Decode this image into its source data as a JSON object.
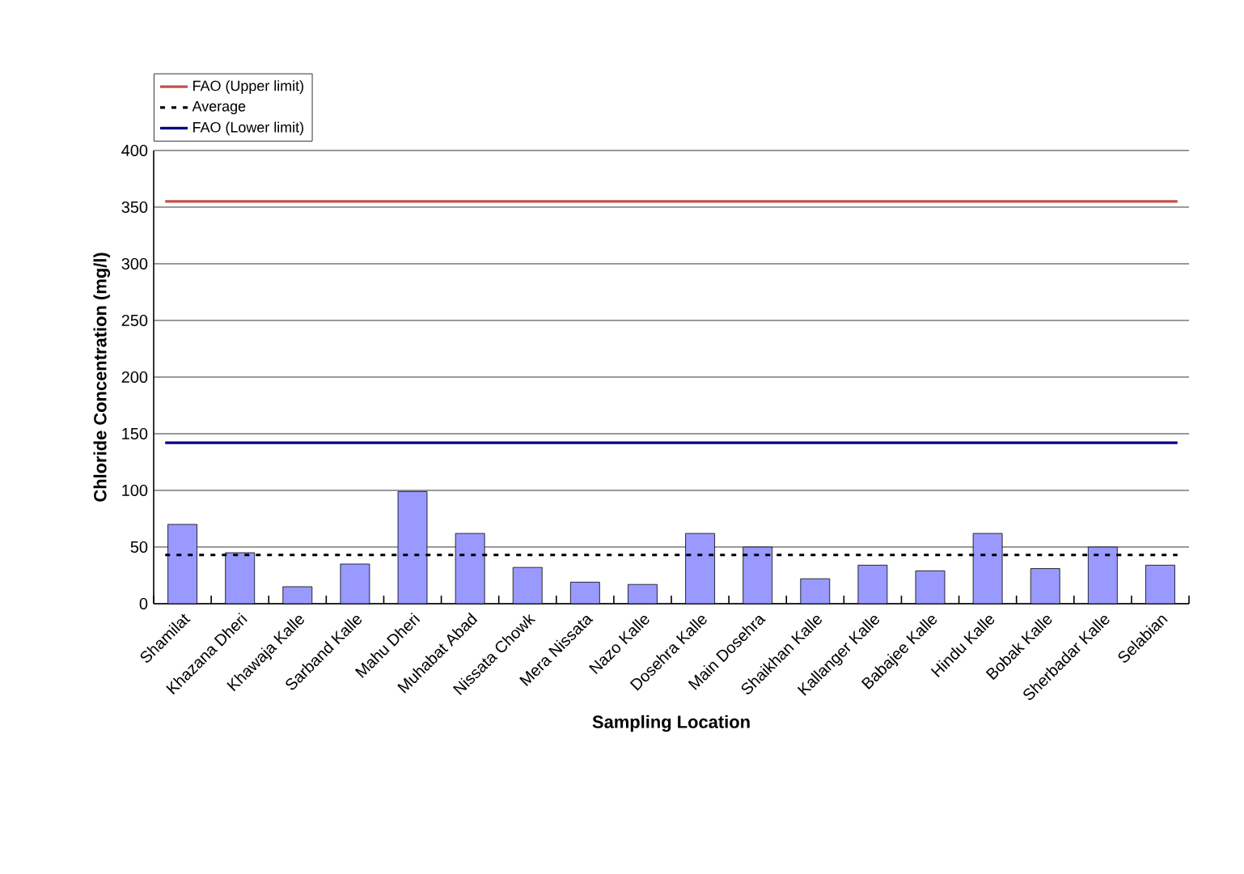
{
  "chart_data": {
    "type": "bar",
    "xlabel": "Sampling Location",
    "ylabel": "Chloride Concentration (mg/l)",
    "categories": [
      "Shamilat",
      "Khazana Dheri",
      "Khawaja Kalle",
      "Sarband Kalle",
      "Mahu Dheri",
      "Muhabat Abad",
      "Nissata Chowk",
      "Mera Nissata",
      "Nazo Kalle",
      "Dosehra Kalle",
      "Main Dosehra",
      "Shaikhan Kalle",
      "Kallanger Kalle",
      "Babajee Kalle",
      "Hindu Kalle",
      "Bobak Kalle",
      "Sherbadar Kalle",
      "Selabian"
    ],
    "values": [
      70,
      45,
      15,
      35,
      99,
      62,
      32,
      19,
      17,
      62,
      50,
      22,
      34,
      29,
      62,
      31,
      50,
      34
    ],
    "color": "#9999ff",
    "ylim": [
      0,
      400
    ],
    "yticks": [
      0,
      50,
      100,
      150,
      200,
      250,
      300,
      350,
      400
    ],
    "grid": "y",
    "legend": "top left",
    "ref_lines": [
      {
        "axis": "y",
        "value": 355,
        "label": "FAO (Upper limit)",
        "color": "#c0504d",
        "line_style": "solid"
      },
      {
        "axis": "y",
        "value": 43,
        "label": "Average",
        "color": "#000000",
        "line_style": "dotted"
      },
      {
        "axis": "y",
        "value": 142,
        "label": "FAO (Lower limit)",
        "color": "#000080",
        "line_style": "solid"
      }
    ]
  }
}
